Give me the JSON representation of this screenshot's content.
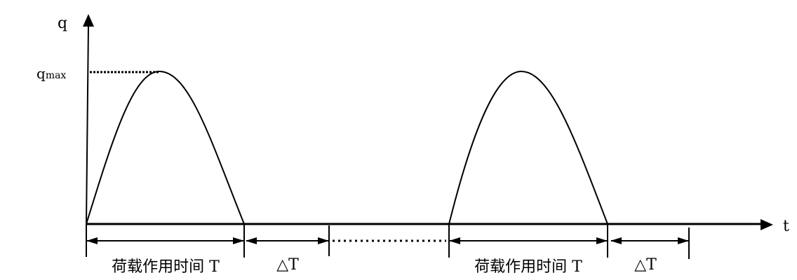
{
  "axes": {
    "y_label": "q",
    "x_label": "t",
    "peak_label_base": "q",
    "peak_label_sub": "max"
  },
  "intervals": [
    {
      "label": "荷载作用时间 T"
    },
    {
      "label": "△T"
    },
    {
      "label": "荷载作用时间 T"
    },
    {
      "label": "△T"
    }
  ],
  "colors": {
    "line": "#000000",
    "background": "#ffffff"
  }
}
